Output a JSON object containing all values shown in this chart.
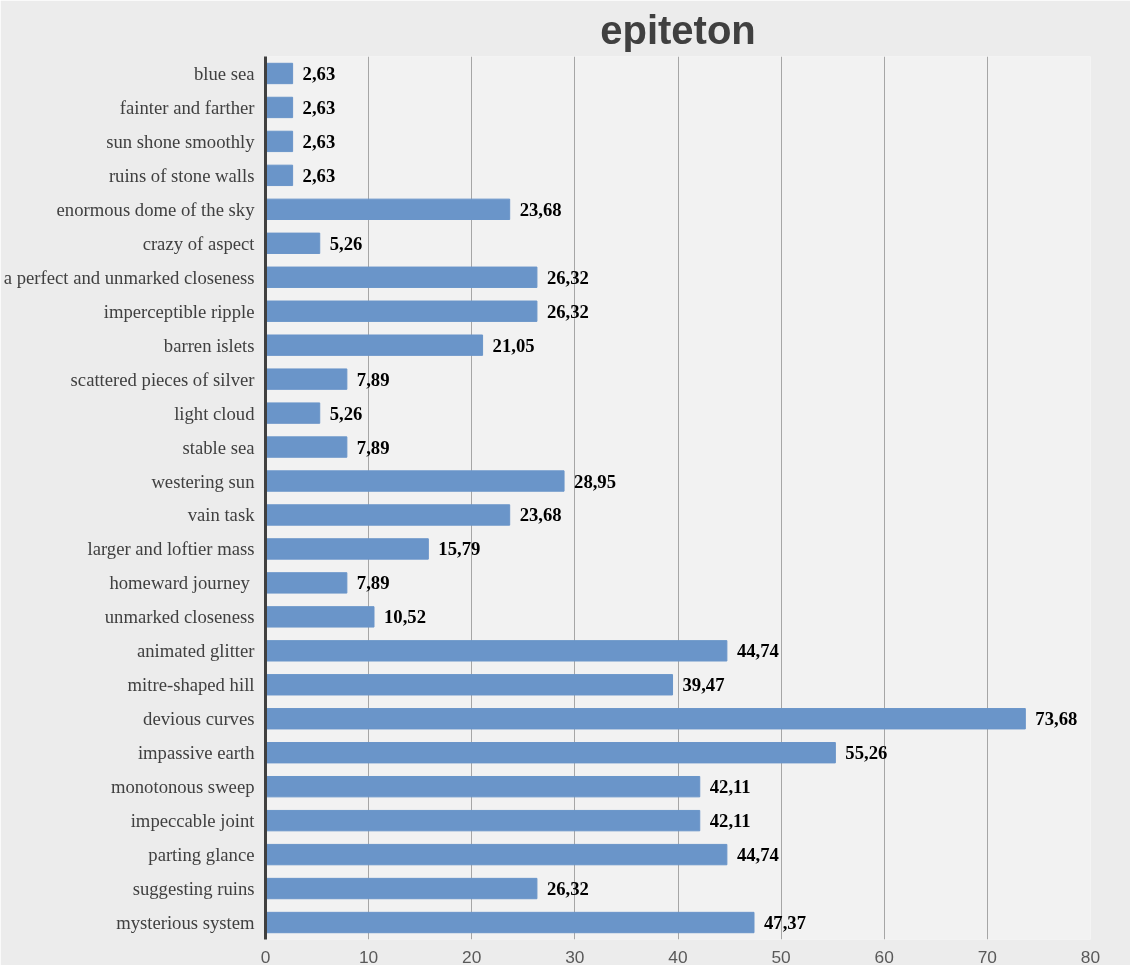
{
  "chart_data": {
    "type": "bar",
    "orientation": "horizontal",
    "title": "epiteton",
    "categories": [
      "blue sea",
      "fainter and farther",
      "sun shone smoothly",
      "ruins of stone walls",
      "enormous dome of the sky",
      "crazy of aspect",
      "a perfect and unmarked closeness",
      "imperceptible ripple",
      "barren islets",
      "scattered pieces of silver",
      "light cloud",
      "stable sea",
      "westering sun",
      "vain task",
      "larger and loftier mass",
      "homeward journey ",
      "unmarked closeness",
      "animated glitter",
      "mitre-shaped hill",
      "devious curves",
      "impassive earth",
      "monotonous sweep",
      "impeccable joint",
      "parting glance",
      "suggesting ruins",
      "mysterious system"
    ],
    "values": [
      2.63,
      2.63,
      2.63,
      2.63,
      23.68,
      5.26,
      26.32,
      26.32,
      21.05,
      7.89,
      5.26,
      7.89,
      28.95,
      23.68,
      15.79,
      7.89,
      10.52,
      44.74,
      39.47,
      73.68,
      55.26,
      42.11,
      42.11,
      44.74,
      26.32,
      47.37
    ],
    "value_labels": [
      "2,63",
      "2,63",
      "2,63",
      "2,63",
      "23,68",
      "5,26",
      "26,32",
      "26,32",
      "21,05",
      "7,89",
      "5,26",
      "7,89",
      "28,95",
      "23,68",
      "15,79",
      "7,89",
      "10,52",
      "44,74",
      "39,47",
      "73,68",
      "55,26",
      "42,11",
      "42,11",
      "44,74",
      "26,32",
      "47,37"
    ],
    "color": "#6a95c9",
    "xlim": [
      0,
      80
    ],
    "xticks": [
      0,
      10,
      20,
      30,
      40,
      50,
      60,
      70,
      80
    ],
    "grid": "x"
  }
}
